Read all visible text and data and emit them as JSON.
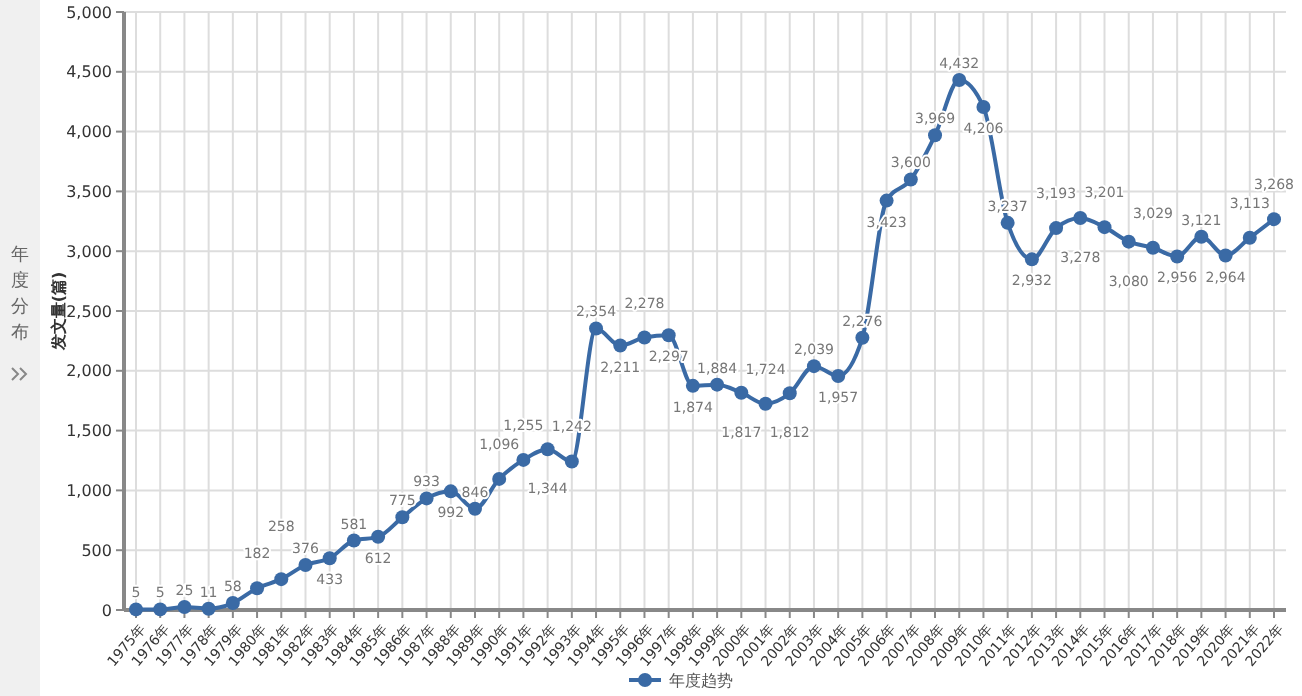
{
  "chart_data": {
    "type": "line",
    "ylabel": "发文量(篇)",
    "categories": [
      "1975年",
      "1976年",
      "1977年",
      "1978年",
      "1979年",
      "1980年",
      "1981年",
      "1982年",
      "1983年",
      "1984年",
      "1985年",
      "1986年",
      "1987年",
      "1988年",
      "1989年",
      "1990年",
      "1991年",
      "1992年",
      "1993年",
      "1994年",
      "1995年",
      "1996年",
      "1997年",
      "1998年",
      "1999年",
      "2000年",
      "2001年",
      "2002年",
      "2003年",
      "2004年",
      "2005年",
      "2006年",
      "2007年",
      "2008年",
      "2009年",
      "2010年",
      "2011年",
      "2012年",
      "2013年",
      "2014年",
      "2015年",
      "2016年",
      "2017年",
      "2018年",
      "2019年",
      "2020年",
      "2021年",
      "2022年"
    ],
    "series": [
      {
        "name": "年度趋势",
        "color": "#3a6aa5",
        "values": [
          5,
          5,
          25,
          11,
          58,
          182,
          258,
          376,
          433,
          581,
          612,
          775,
          933,
          992,
          846,
          1096,
          1255,
          1344,
          1242,
          2354,
          2211,
          2278,
          2297,
          1874,
          1884,
          1817,
          1724,
          1812,
          2039,
          1957,
          2276,
          3423,
          3600,
          3969,
          4432,
          4206,
          3237,
          2932,
          3193,
          3278,
          3201,
          3080,
          3029,
          2956,
          3121,
          2964,
          3113,
          3268
        ]
      }
    ],
    "ylim": [
      0,
      5000
    ],
    "yticks": [
      {
        "value": 0,
        "label": "0"
      },
      {
        "value": 500,
        "label": "500"
      },
      {
        "value": 1000,
        "label": "1,000"
      },
      {
        "value": 1500,
        "label": "1,500"
      },
      {
        "value": 2000,
        "label": "2,000"
      },
      {
        "value": 2500,
        "label": "2,500"
      },
      {
        "value": 3000,
        "label": "3,000"
      },
      {
        "value": 3500,
        "label": "3,500"
      },
      {
        "value": 4000,
        "label": "4,000"
      },
      {
        "value": 4500,
        "label": "4,500"
      },
      {
        "value": 5000,
        "label": "5,000"
      }
    ],
    "value_labels": [
      "5",
      "5",
      "25",
      "11",
      "58",
      "182",
      "258",
      "376",
      "433",
      "581",
      "612",
      "775",
      "933",
      "992",
      "846",
      "1,096",
      "1,255",
      "1,344",
      "1,242",
      "2,354",
      "2,211",
      "2,278",
      "2,297",
      "1,874",
      "1,884",
      "1,817",
      "1,724",
      "1,812",
      "2,039",
      "1,957",
      "2,276",
      "3,423",
      "3,600",
      "3,969",
      "4,432",
      "4,206",
      "3,237",
      "2,932",
      "3,193",
      "3,278",
      "3,201",
      "3,080",
      "3,029",
      "2,956",
      "3,121",
      "2,964",
      "3,113",
      "3,268"
    ],
    "grid": true,
    "legend": "bottom",
    "marker": "circle",
    "line_style": "solid",
    "annotations": [
      "年度分布"
    ]
  }
}
